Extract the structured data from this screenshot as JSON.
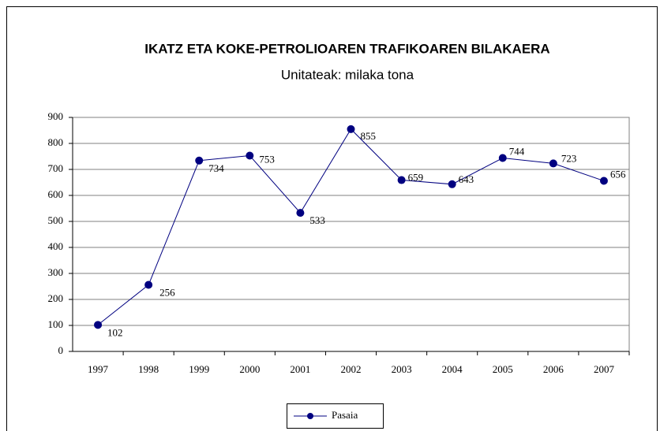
{
  "chart_data": {
    "type": "line",
    "title": "IKATZ ETA KOKE-PETROLIOAREN TRAFIKOAREN BILAKAERA",
    "subtitle": "Unitateak: milaka tona",
    "categories": [
      "1997",
      "1998",
      "1999",
      "2000",
      "2001",
      "2002",
      "2003",
      "2004",
      "2005",
      "2006",
      "2007"
    ],
    "series": [
      {
        "name": "Pasaia",
        "color": "#000080",
        "values": [
          102,
          256,
          734,
          753,
          533,
          855,
          659,
          643,
          744,
          723,
          656
        ]
      }
    ],
    "ylim": [
      0,
      900
    ],
    "yticks": [
      0,
      100,
      200,
      300,
      400,
      500,
      600,
      700,
      800,
      900
    ],
    "grid": true,
    "legend": "bottom"
  }
}
